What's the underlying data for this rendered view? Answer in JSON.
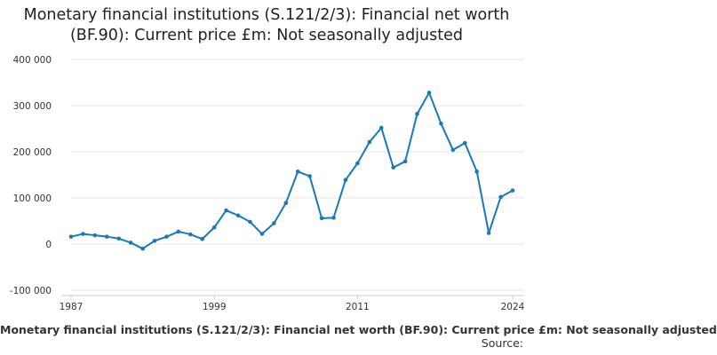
{
  "chart_data": {
    "type": "line",
    "title": "Monetary financial institutions (S.121/2/3): Financial net worth (BF.90): Current price £m: Not seasonally adjusted",
    "xlabel": "Monetary financial institutions (S.121/2/3): Financial net worth (BF.90): Current price £m: Not seasonally adjusted",
    "ylabel": "",
    "source_label": "Source:",
    "x": [
      1987,
      1988,
      1989,
      1990,
      1991,
      1992,
      1993,
      1994,
      1995,
      1996,
      1997,
      1998,
      1999,
      2000,
      2001,
      2002,
      2003,
      2004,
      2005,
      2006,
      2007,
      2008,
      2009,
      2010,
      2011,
      2012,
      2013,
      2014,
      2015,
      2016,
      2017,
      2018,
      2019,
      2020,
      2021,
      2022,
      2023,
      2024
    ],
    "series": [
      {
        "color": "#1a7ab5",
        "values": [
          16000,
          22000,
          19000,
          16000,
          12000,
          3000,
          -10000,
          7000,
          16000,
          27000,
          21000,
          11000,
          36000,
          73000,
          62000,
          48000,
          22000,
          45000,
          89000,
          157000,
          147000,
          56000,
          57000,
          139000,
          175000,
          221000,
          252000,
          166000,
          179000,
          282000,
          328000,
          261000,
          204000,
          219000,
          157000,
          24000,
          102000,
          116000
        ]
      }
    ],
    "xticks": [
      1987,
      1999,
      2011,
      2024
    ],
    "xtick_labels": [
      "1987",
      "1999",
      "2011",
      "2024"
    ],
    "yticks": [
      -100000,
      0,
      100000,
      200000,
      300000,
      400000
    ],
    "ytick_labels": [
      "-100 000",
      "0",
      "100 000",
      "200 000",
      "300 000",
      "400 000"
    ],
    "ylim": [
      -100000,
      400000
    ],
    "xlim": [
      1987,
      2024
    ],
    "grid": true,
    "legend": "none"
  }
}
